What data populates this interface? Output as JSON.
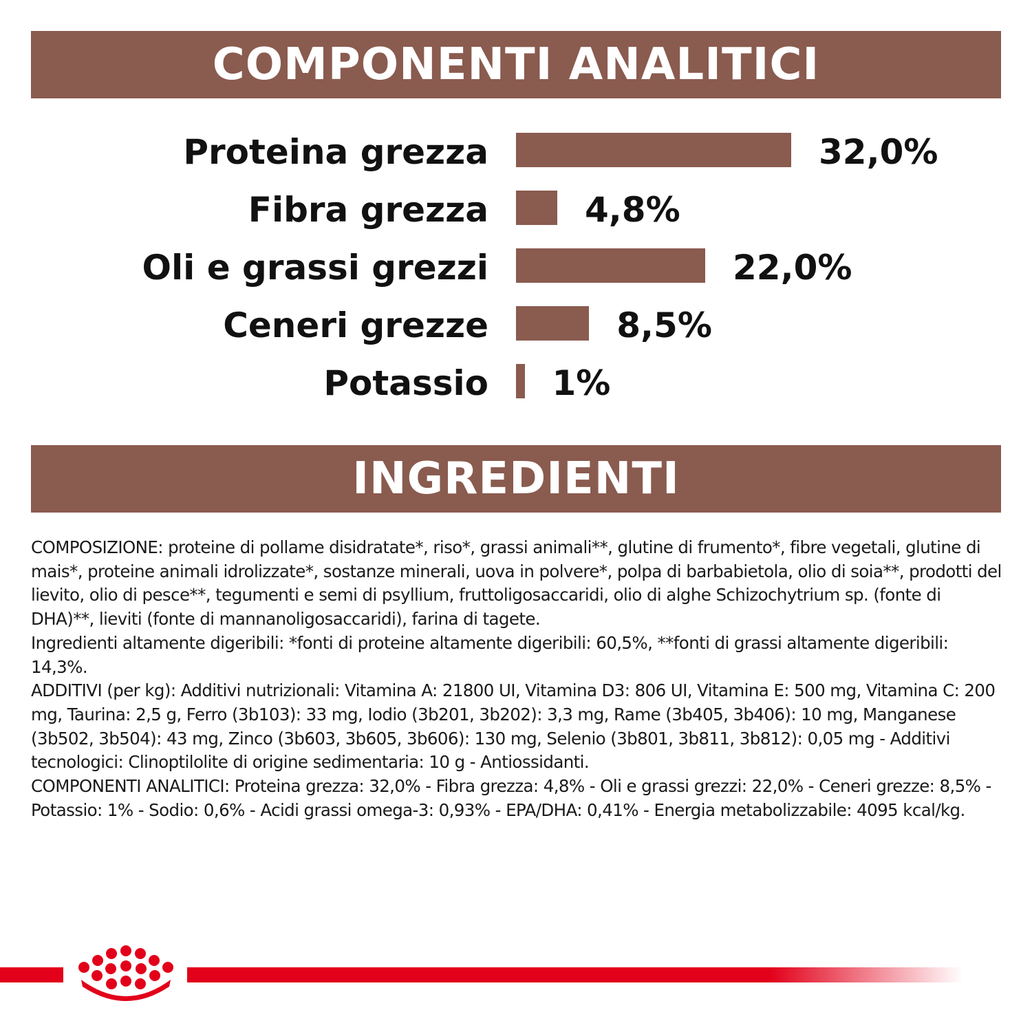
{
  "sections": {
    "analytic_title": "COMPONENTI ANALITICI",
    "ingredients_title": "INGREDIENTI"
  },
  "brand_color": "#8a5b4f",
  "accent_color": "#e2001a",
  "chart_data": {
    "type": "bar",
    "orientation": "horizontal",
    "categories": [
      "Proteina grezza",
      "Fibra grezza",
      "Oli e grassi grezzi",
      "Ceneri grezze",
      "Potassio"
    ],
    "values": [
      32.0,
      4.8,
      22.0,
      8.5,
      1
    ],
    "value_labels": [
      "32,0%",
      "4,8%",
      "22,0%",
      "8,5%",
      "1%"
    ],
    "unit": "%"
  },
  "ingredients_text": [
    "COMPOSIZIONE: proteine di pollame disidratate*, riso*, grassi animali**, glutine di frumento*, fibre vegetali, glutine di mais*, proteine animali idrolizzate*, sostanze minerali, uova in polvere*, polpa di barbabietola, olio di soia**, prodotti del lievito, olio di pesce**, tegumenti e semi di psyllium, fruttoligosaccaridi, olio di alghe Schizochytrium sp. (fonte di DHA)**, lieviti (fonte di mannanoligosaccaridi), farina di tagete.",
    "Ingredienti altamente digeribili: *fonti di proteine altamente digeribili: 60,5%, **fonti di grassi altamente digeribili: 14,3%.",
    "ADDITIVI (per kg): Additivi nutrizionali: Vitamina A: 21800 UI, Vitamina D3: 806 UI, Vitamina E: 500 mg, Vitamina C: 200 mg, Taurina: 2,5 g, Ferro (3b103): 33 mg, Iodio (3b201, 3b202): 3,3 mg, Rame (3b405, 3b406): 10 mg, Manganese (3b502, 3b504): 43 mg, Zinco (3b603, 3b605, 3b606): 130 mg, Selenio (3b801, 3b811, 3b812): 0,05 mg - Additivi tecnologici: Clinoptilolite di origine sedimentaria: 10 g - Antiossidanti.",
    "COMPONENTI ANALITICI: Proteina grezza: 32,0% - Fibra grezza: 4,8% - Oli e grassi grezzi: 22,0% - Ceneri grezze: 8,5% - Potassio: 1% - Sodio: 0,6% - Acidi grassi omega-3: 0,93% - EPA/DHA: 0,41% - Energia metabolizzabile: 4095 kcal/kg."
  ],
  "logo": {
    "icon": "crown-icon"
  }
}
